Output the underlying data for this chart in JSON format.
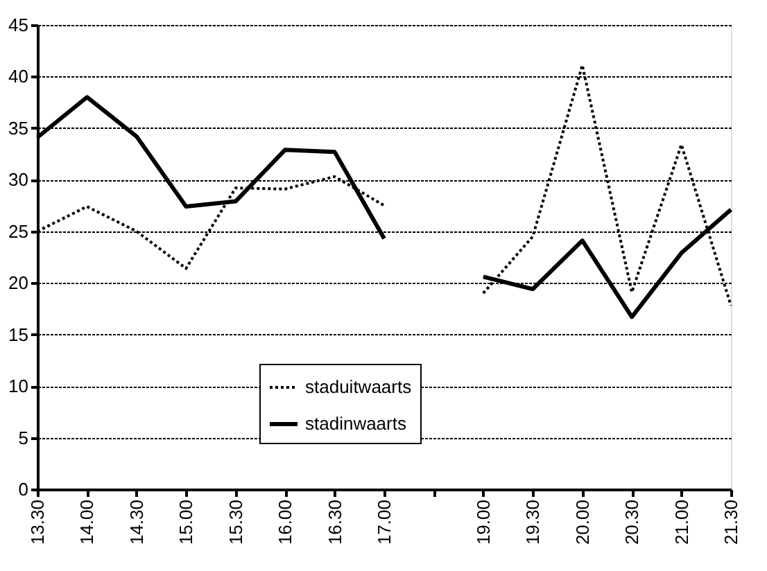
{
  "chart_data": {
    "type": "line",
    "categories": [
      "13.30",
      "14.00",
      "14.30",
      "15.00",
      "15.30",
      "16.00",
      "16.30",
      "17.00",
      null,
      "19.00",
      "19.30",
      "20.00",
      "20.30",
      "21.00",
      "21.30"
    ],
    "series": [
      {
        "name": "staduitwaarts",
        "color": "#000000",
        "line_style": "dotted",
        "values": [
          25.0,
          27.4,
          25.0,
          21.4,
          29.2,
          29.1,
          30.3,
          27.5,
          null,
          19.0,
          24.5,
          41.1,
          19.1,
          33.4,
          17.8
        ]
      },
      {
        "name": "stadinwaarts",
        "color": "#000000",
        "line_style": "solid",
        "values": [
          34.1,
          38.0,
          34.2,
          27.4,
          27.9,
          32.9,
          32.7,
          24.3,
          null,
          20.6,
          19.4,
          24.1,
          16.7,
          22.9,
          27.1
        ]
      }
    ],
    "ylim": [
      0,
      45
    ],
    "yticks": [
      0,
      5,
      10,
      15,
      20,
      25,
      30,
      35,
      40,
      45
    ],
    "grid": "y",
    "legend": "bottom",
    "marker": "none"
  }
}
